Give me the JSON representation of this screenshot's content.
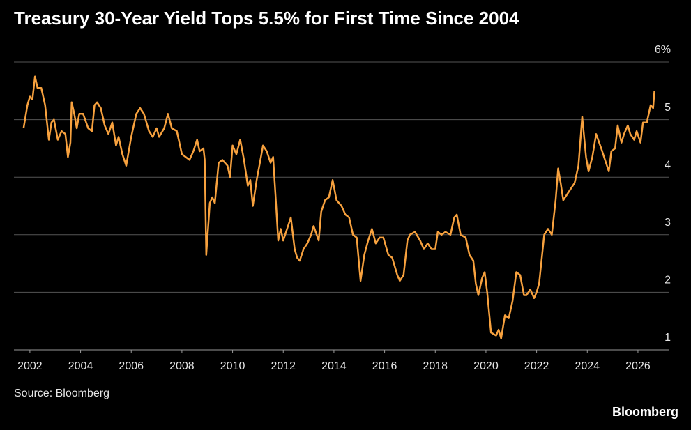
{
  "chart_data": {
    "type": "line",
    "title": "Treasury 30-Year Yield Tops 5.5% for First Time Since 2004",
    "source": "Source: Bloomberg",
    "logo": "Bloomberg",
    "color": "#f7a13e",
    "grid": true,
    "xlim": [
      2001.37,
      2027.24
    ],
    "xticks": [
      2002,
      2004,
      2006,
      2008,
      2010,
      2012,
      2014,
      2016,
      2018,
      2020,
      2022,
      2024,
      2026
    ],
    "ylim": [
      1,
      6
    ],
    "yticks": [
      1,
      2,
      3,
      4,
      5,
      {
        "value": 6,
        "label": "6%"
      }
    ],
    "x": [
      2001.75,
      2001.9,
      2002.0,
      2002.1,
      2002.2,
      2002.3,
      2002.45,
      2002.6,
      2002.75,
      2002.85,
      2002.95,
      2003.1,
      2003.25,
      2003.4,
      2003.5,
      2003.6,
      2003.65,
      2003.75,
      2003.85,
      2003.95,
      2004.1,
      2004.3,
      2004.45,
      2004.55,
      2004.65,
      2004.8,
      2004.95,
      2005.1,
      2005.25,
      2005.4,
      2005.5,
      2005.65,
      2005.8,
      2005.9,
      2006.0,
      2006.2,
      2006.35,
      2006.5,
      2006.7,
      2006.85,
      2007.0,
      2007.1,
      2007.3,
      2007.45,
      2007.6,
      2007.8,
      2008.0,
      2008.15,
      2008.3,
      2008.45,
      2008.6,
      2008.7,
      2008.85,
      2008.9,
      2008.96,
      2009.1,
      2009.2,
      2009.3,
      2009.45,
      2009.6,
      2009.8,
      2009.9,
      2010.0,
      2010.15,
      2010.3,
      2010.45,
      2010.6,
      2010.7,
      2010.8,
      2010.95,
      2011.1,
      2011.2,
      2011.35,
      2011.5,
      2011.6,
      2011.7,
      2011.8,
      2011.9,
      2012.0,
      2012.15,
      2012.3,
      2012.45,
      2012.55,
      2012.65,
      2012.8,
      2012.95,
      2013.1,
      2013.2,
      2013.4,
      2013.5,
      2013.65,
      2013.8,
      2013.95,
      2014.1,
      2014.3,
      2014.45,
      2014.6,
      2014.75,
      2014.9,
      2015.05,
      2015.2,
      2015.35,
      2015.5,
      2015.65,
      2015.8,
      2015.95,
      2016.15,
      2016.3,
      2016.5,
      2016.6,
      2016.75,
      2016.9,
      2017.0,
      2017.2,
      2017.4,
      2017.55,
      2017.7,
      2017.85,
      2018.0,
      2018.1,
      2018.25,
      2018.4,
      2018.6,
      2018.75,
      2018.85,
      2019.0,
      2019.2,
      2019.35,
      2019.5,
      2019.6,
      2019.7,
      2019.85,
      2019.95,
      2020.05,
      2020.2,
      2020.4,
      2020.5,
      2020.6,
      2020.75,
      2020.9,
      2021.05,
      2021.2,
      2021.35,
      2021.5,
      2021.6,
      2021.75,
      2021.9,
      2022.0,
      2022.1,
      2022.3,
      2022.45,
      2022.6,
      2022.75,
      2022.85,
      2022.95,
      2023.05,
      2023.2,
      2023.35,
      2023.5,
      2023.65,
      2023.8,
      2023.95,
      2024.05,
      2024.2,
      2024.35,
      2024.55,
      2024.7,
      2024.85,
      2024.95,
      2025.1,
      2025.2,
      2025.35,
      2025.45,
      2025.6,
      2025.7,
      2025.85,
      2025.95,
      2026.1,
      2026.2,
      2026.35,
      2026.5,
      2026.6,
      2026.65
    ],
    "values": [
      4.85,
      5.25,
      5.4,
      5.35,
      5.75,
      5.55,
      5.55,
      5.25,
      4.65,
      4.95,
      5.0,
      4.65,
      4.8,
      4.75,
      4.35,
      4.6,
      5.3,
      5.1,
      4.85,
      5.1,
      5.1,
      4.85,
      4.8,
      5.25,
      5.3,
      5.2,
      4.9,
      4.75,
      4.95,
      4.55,
      4.7,
      4.4,
      4.2,
      4.45,
      4.7,
      5.1,
      5.2,
      5.1,
      4.8,
      4.7,
      4.85,
      4.7,
      4.85,
      5.1,
      4.85,
      4.8,
      4.4,
      4.35,
      4.3,
      4.45,
      4.65,
      4.45,
      4.5,
      4.3,
      2.65,
      3.55,
      3.65,
      3.55,
      4.25,
      4.3,
      4.2,
      4.0,
      4.55,
      4.4,
      4.65,
      4.3,
      3.85,
      3.95,
      3.5,
      3.95,
      4.3,
      4.55,
      4.45,
      4.25,
      4.35,
      3.65,
      2.9,
      3.1,
      2.9,
      3.1,
      3.3,
      2.75,
      2.6,
      2.55,
      2.75,
      2.85,
      3.0,
      3.15,
      2.9,
      3.4,
      3.6,
      3.65,
      3.95,
      3.6,
      3.5,
      3.35,
      3.3,
      3.0,
      2.95,
      2.2,
      2.65,
      2.9,
      3.1,
      2.85,
      2.95,
      2.95,
      2.65,
      2.6,
      2.3,
      2.2,
      2.3,
      2.9,
      3.0,
      3.05,
      2.9,
      2.75,
      2.85,
      2.75,
      2.75,
      3.05,
      3.0,
      3.05,
      3.0,
      3.3,
      3.35,
      3.0,
      2.95,
      2.65,
      2.55,
      2.15,
      1.95,
      2.25,
      2.35,
      2.0,
      1.3,
      1.25,
      1.35,
      1.2,
      1.6,
      1.55,
      1.85,
      2.35,
      2.3,
      1.95,
      1.95,
      2.05,
      1.9,
      2.0,
      2.15,
      3.0,
      3.1,
      3.0,
      3.6,
      4.15,
      3.9,
      3.6,
      3.7,
      3.8,
      3.9,
      4.2,
      5.05,
      4.35,
      4.1,
      4.35,
      4.75,
      4.5,
      4.3,
      4.1,
      4.45,
      4.5,
      4.9,
      4.6,
      4.75,
      4.9,
      4.75,
      4.65,
      4.8,
      4.6,
      4.95,
      4.95,
      5.25,
      5.2,
      5.5
    ]
  }
}
